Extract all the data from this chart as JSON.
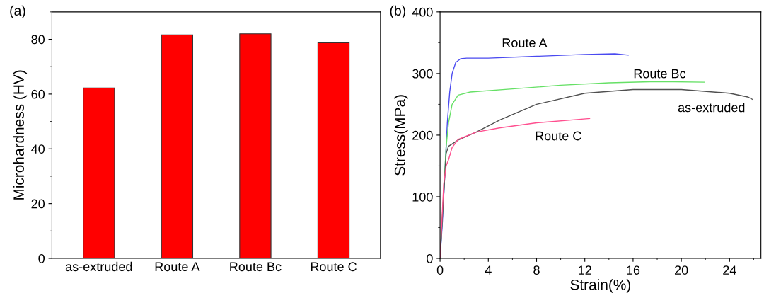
{
  "chart_data": [
    {
      "type": "bar",
      "title": "(a)",
      "ylabel": "Microhardness (HV)",
      "categories": [
        "as-extruded",
        "Route A",
        "Route Bc",
        "Route C"
      ],
      "values": [
        62.2,
        81.6,
        82.0,
        78.7
      ],
      "color": "#ff0000",
      "ylim": [
        0,
        90
      ],
      "yticks": [
        0,
        20,
        40,
        60,
        80
      ],
      "grid": false,
      "legend": false
    },
    {
      "type": "line",
      "title": "(b)",
      "xlabel": "Strain(%)",
      "ylabel": "Stress(MPa)",
      "xlim": [
        0,
        26.6
      ],
      "xticks": [
        0,
        4,
        8,
        12,
        16,
        20,
        24
      ],
      "ylim": [
        0,
        400
      ],
      "yticks": [
        0,
        100,
        200,
        300,
        400
      ],
      "grid": false,
      "legend": false,
      "marker": "none",
      "line_style": "solid",
      "series": [
        {
          "name": "Route A",
          "color": "#4a4af0",
          "x": [
            0,
            0.2,
            0.6,
            0.8,
            1.0,
            1.3,
            1.7,
            2.2,
            4,
            8,
            12,
            14.5,
            15.6
          ],
          "values": [
            0,
            60,
            220,
            270,
            300,
            318,
            324,
            325,
            325,
            328,
            331,
            332,
            330
          ]
        },
        {
          "name": "Route Bc",
          "color": "#66e066",
          "x": [
            0,
            0.5,
            0.7,
            1.0,
            1.5,
            2.5,
            6,
            10,
            14,
            18,
            21.9
          ],
          "values": [
            0,
            180,
            220,
            250,
            265,
            270,
            275,
            281,
            285,
            287,
            286
          ]
        },
        {
          "name": "as-extruded",
          "color": "#505050",
          "x": [
            0,
            0.5,
            0.7,
            1.5,
            3,
            5,
            8,
            12,
            16,
            20,
            24,
            25.5,
            25.9
          ],
          "values": [
            0,
            170,
            182,
            192,
            205,
            225,
            250,
            268,
            274,
            274,
            268,
            262,
            258
          ]
        },
        {
          "name": "Route C",
          "color": "#ff4f8f",
          "x": [
            0,
            0.3,
            0.5,
            0.7,
            1,
            1.5,
            3,
            5,
            8,
            12.4
          ],
          "values": [
            0,
            120,
            150,
            160,
            180,
            193,
            205,
            212,
            220,
            227
          ]
        }
      ]
    }
  ]
}
